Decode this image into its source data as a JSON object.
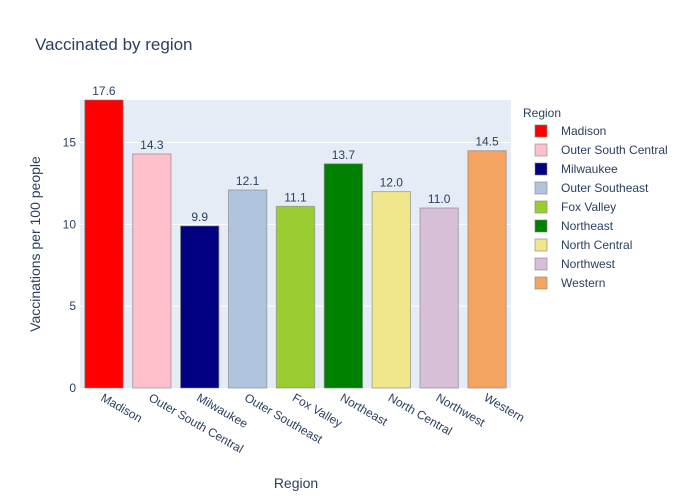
{
  "chart_data": {
    "type": "bar",
    "title": "Vaccinated by region",
    "xlabel": "Region",
    "ylabel": "Vaccinations per 100 people",
    "ylim": [
      0,
      17.6
    ],
    "yticks": [
      0,
      5,
      10,
      15
    ],
    "grid": true,
    "legend": {
      "title": "Region",
      "placement": "right"
    },
    "categories": [
      "Madison",
      "Outer South Central",
      "Milwaukee",
      "Outer Southeast",
      "Fox Valley",
      "Northeast",
      "North Central",
      "Northwest",
      "Western"
    ],
    "values": [
      17.6,
      14.3,
      9.9,
      12.1,
      11.1,
      13.7,
      12.0,
      11.0,
      14.5
    ],
    "value_labels": [
      "17.6",
      "14.3",
      "9.9",
      "12.1",
      "11.1",
      "13.7",
      "12.0",
      "11.0",
      "14.5"
    ],
    "colors": [
      "#ff0000",
      "#ffc0cb",
      "#000080",
      "#b0c4de",
      "#9acd32",
      "#008000",
      "#f0e68c",
      "#d8bfd8",
      "#f4a460"
    ]
  }
}
